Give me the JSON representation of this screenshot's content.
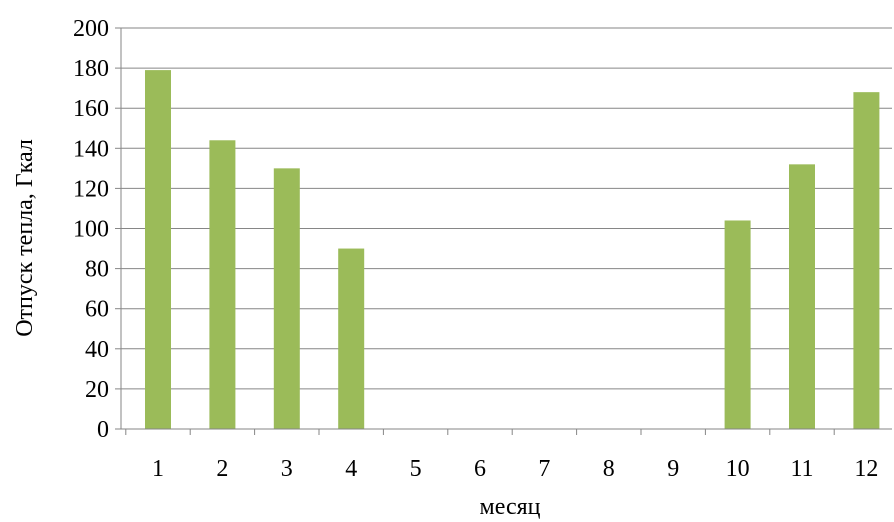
{
  "chart_data": {
    "type": "bar",
    "title": "",
    "xlabel": "месяц",
    "ylabel": "Отпуск тепла, Гкал",
    "categories": [
      "1",
      "2",
      "3",
      "4",
      "5",
      "6",
      "7",
      "8",
      "9",
      "10",
      "11",
      "12"
    ],
    "values": [
      179,
      144,
      130,
      90,
      0,
      0,
      0,
      0,
      0,
      104,
      132,
      168
    ],
    "ylim": [
      0,
      200
    ],
    "yticks": [
      "0",
      "20",
      "40",
      "60",
      "80",
      "100",
      "120",
      "140",
      "160",
      "180",
      "200"
    ],
    "grid": true,
    "legend": "none",
    "colors": {
      "bar": "#9bbb59",
      "grid": "#868686",
      "axis": "#868686"
    }
  }
}
